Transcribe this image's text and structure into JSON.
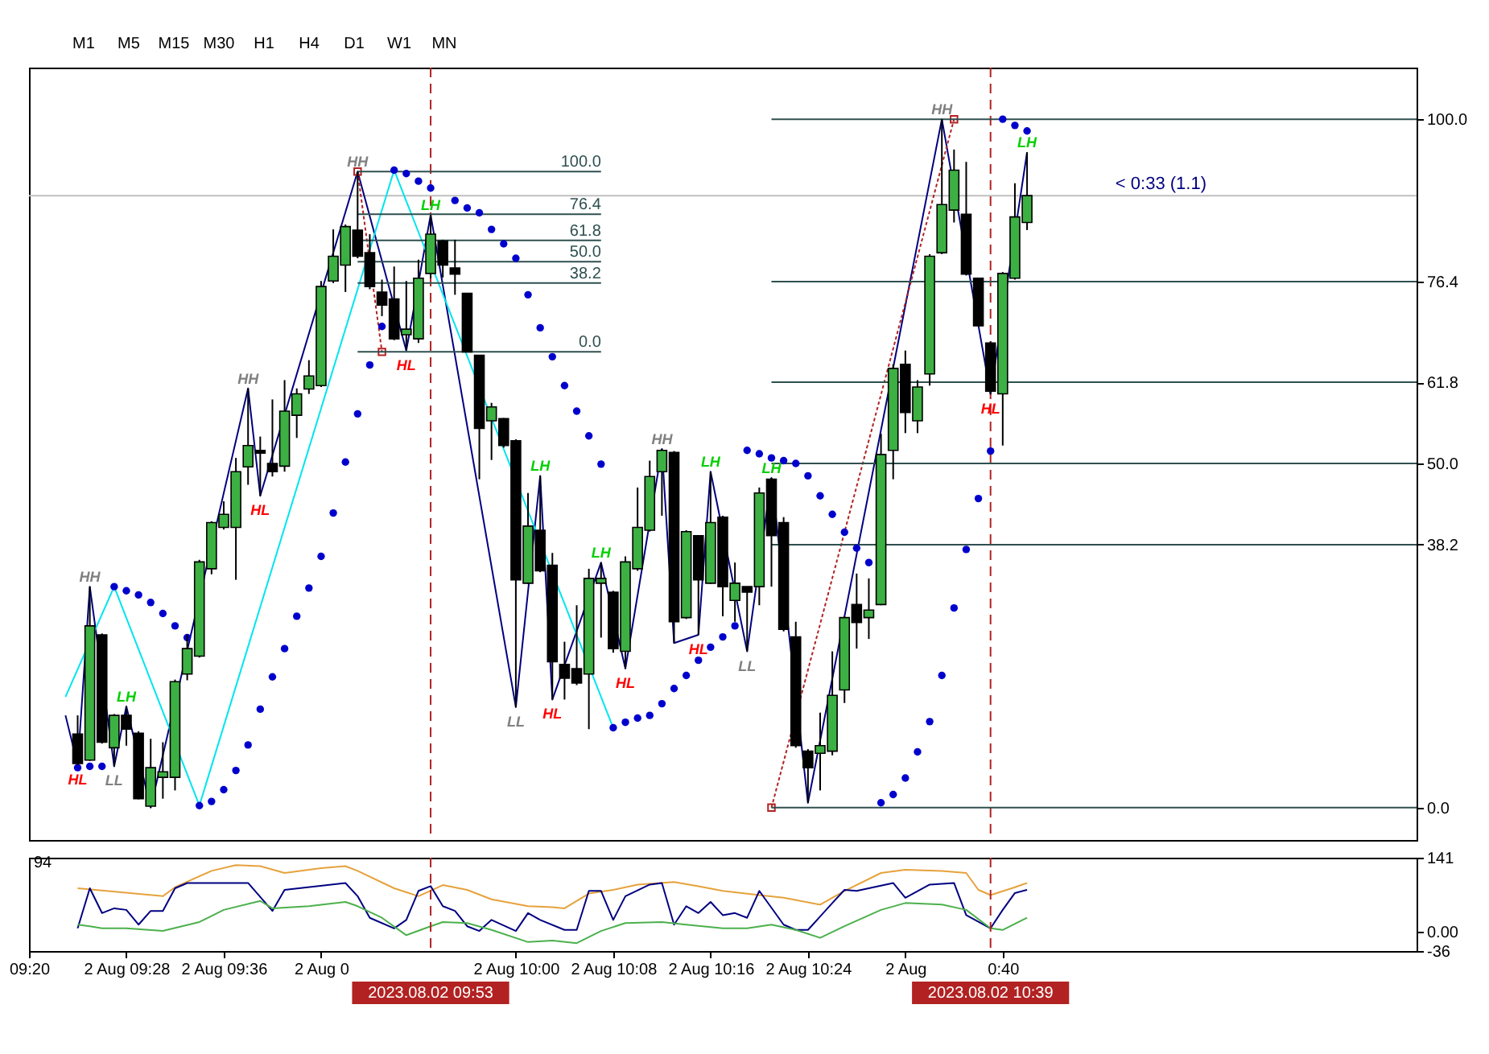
{
  "chart_data": [
    {
      "type": "candlestick",
      "tick_labels": "y",
      "xlim": [
        "2023-08-02T09:20",
        "2023-08-02T11:14"
      ],
      "ylim": [
        -4.7,
        107.5
      ],
      "yticks": [
        {
          "value": 0,
          "label": "0.0"
        },
        38.2,
        {
          "value": 50,
          "label": "50.0"
        },
        61.8,
        76.4,
        {
          "value": 100,
          "label": "100.0"
        }
      ],
      "x": [
        "2023-08-02T09:24",
        "2023-08-02T09:25",
        "2023-08-02T09:26",
        "2023-08-02T09:27",
        "2023-08-02T09:28",
        "2023-08-02T09:29",
        "2023-08-02T09:30",
        "2023-08-02T09:31",
        "2023-08-02T09:32",
        "2023-08-02T09:33",
        "2023-08-02T09:34",
        "2023-08-02T09:35",
        "2023-08-02T09:36",
        "2023-08-02T09:37",
        "2023-08-02T09:38",
        "2023-08-02T09:39",
        "2023-08-02T09:40",
        "2023-08-02T09:41",
        "2023-08-02T09:42",
        "2023-08-02T09:43",
        "2023-08-02T09:44",
        "2023-08-02T09:45",
        "2023-08-02T09:46",
        "2023-08-02T09:47",
        "2023-08-02T09:48",
        "2023-08-02T09:49",
        "2023-08-02T09:50",
        "2023-08-02T09:51",
        "2023-08-02T09:52",
        "2023-08-02T09:53",
        "2023-08-02T09:54",
        "2023-08-02T09:55",
        "2023-08-02T09:56",
        "2023-08-02T09:57",
        "2023-08-02T09:58",
        "2023-08-02T09:59",
        "2023-08-02T10:00",
        "2023-08-02T10:01",
        "2023-08-02T10:02",
        "2023-08-02T10:03",
        "2023-08-02T10:04",
        "2023-08-02T10:05",
        "2023-08-02T10:06",
        "2023-08-02T10:07",
        "2023-08-02T10:08",
        "2023-08-02T10:09",
        "2023-08-02T10:10",
        "2023-08-02T10:11",
        "2023-08-02T10:12",
        "2023-08-02T10:13",
        "2023-08-02T10:14",
        "2023-08-02T10:15",
        "2023-08-02T10:16",
        "2023-08-02T10:17",
        "2023-08-02T10:18",
        "2023-08-02T10:19",
        "2023-08-02T10:20",
        "2023-08-02T10:21",
        "2023-08-02T10:22",
        "2023-08-02T10:23",
        "2023-08-02T10:24",
        "2023-08-02T10:25",
        "2023-08-02T10:26",
        "2023-08-02T10:27",
        "2023-08-02T10:28",
        "2023-08-02T10:29",
        "2023-08-02T10:30",
        "2023-08-02T10:31",
        "2023-08-02T10:32",
        "2023-08-02T10:33",
        "2023-08-02T10:34",
        "2023-08-02T10:35",
        "2023-08-02T10:36",
        "2023-08-02T10:37",
        "2023-08-02T10:38",
        "2023-08-02T10:39",
        "2023-08-02T10:40",
        "2023-08-02T10:41",
        "2023-08-02T10:42"
      ],
      "ohlc": [
        [
          10.7,
          13.4,
          6.2,
          6.4
        ],
        [
          6.9,
          32.1,
          6.8,
          26.4
        ],
        [
          25.1,
          25.3,
          9.3,
          9.5
        ],
        [
          8.7,
          13.6,
          6.0,
          13.4
        ],
        [
          13.4,
          14.7,
          9.0,
          11.4
        ],
        [
          10.8,
          11.1,
          1.2,
          1.3
        ],
        [
          0.2,
          10.0,
          0.0,
          5.8
        ],
        [
          4.4,
          9.5,
          1.3,
          5.2
        ],
        [
          4.4,
          18.6,
          2.5,
          18.3
        ],
        [
          19.4,
          25.1,
          18.5,
          23.1
        ],
        [
          22.0,
          36.0,
          21.8,
          35.7
        ],
        [
          34.7,
          41.6,
          33.9,
          41.4
        ],
        [
          40.7,
          44.5,
          40.4,
          42.6
        ],
        [
          40.7,
          50.8,
          33.1,
          48.8
        ],
        [
          49.5,
          60.9,
          46.9,
          52.6
        ],
        [
          51.9,
          53.9,
          45.3,
          51.5
        ],
        [
          50.0,
          59.3,
          48.1,
          48.8
        ],
        [
          49.6,
          62.1,
          48.8,
          57.6
        ],
        [
          57.0,
          60.9,
          53.7,
          60.1
        ],
        [
          60.8,
          65.0,
          60.1,
          62.7
        ],
        [
          61.3,
          76.5,
          61.1,
          75.7
        ],
        [
          76.5,
          84.0,
          76.2,
          80.1
        ],
        [
          78.8,
          84.7,
          74.9,
          84.4
        ],
        [
          83.9,
          92.4,
          79.8,
          80.1
        ],
        [
          80.6,
          83.3,
          75.3,
          75.7
        ],
        [
          74.9,
          76.7,
          71.4,
          73.0
        ],
        [
          73.9,
          78.6,
          67.9,
          68.1
        ],
        [
          68.7,
          76.5,
          66.4,
          69.5
        ],
        [
          68.1,
          79.6,
          67.5,
          76.9
        ],
        [
          77.6,
          86.1,
          76.9,
          83.3
        ],
        [
          82.3,
          82.5,
          77.0,
          78.8
        ],
        [
          78.4,
          82.5,
          74.5,
          77.5
        ],
        [
          74.7,
          74.7,
          66.2,
          66.2
        ],
        [
          65.7,
          65.7,
          47.7,
          55.1
        ],
        [
          56.2,
          58.8,
          50.5,
          58.2
        ],
        [
          56.5,
          56.6,
          52.3,
          52.6
        ],
        [
          53.3,
          53.5,
          14.6,
          33.1
        ],
        [
          32.6,
          45.7,
          32.5,
          40.9
        ],
        [
          40.3,
          48.2,
          34.2,
          34.4
        ],
        [
          35.2,
          37.0,
          15.7,
          21.2
        ],
        [
          20.8,
          24.1,
          15.7,
          18.8
        ],
        [
          20.2,
          29.4,
          17.8,
          18.1
        ],
        [
          19.4,
          34.7,
          11.4,
          33.3
        ],
        [
          32.6,
          35.6,
          24.7,
          33.3
        ],
        [
          31.3,
          31.5,
          22.5,
          23.1
        ],
        [
          22.7,
          36.5,
          20.2,
          35.7
        ],
        [
          34.7,
          46.5,
          34.4,
          40.7
        ],
        [
          40.3,
          50.4,
          40.1,
          48.1
        ],
        [
          48.8,
          52.1,
          42.4,
          51.9
        ],
        [
          51.6,
          51.8,
          23.9,
          27.0
        ],
        [
          27.6,
          40.3,
          27.4,
          40.1
        ],
        [
          39.5,
          39.6,
          25.1,
          33.1
        ],
        [
          32.6,
          48.8,
          32.5,
          41.4
        ],
        [
          42.2,
          42.4,
          27.8,
          32.1
        ],
        [
          30.1,
          35.6,
          27.0,
          32.6
        ],
        [
          32.1,
          32.1,
          22.7,
          31.3
        ],
        [
          32.1,
          46.5,
          29.4,
          45.7
        ],
        [
          47.7,
          47.9,
          32.1,
          39.5
        ],
        [
          41.4,
          42.2,
          25.6,
          25.9
        ],
        [
          24.8,
          27.0,
          8.7,
          9.0
        ],
        [
          8.2,
          8.5,
          0.7,
          5.8
        ],
        [
          7.9,
          13.8,
          2.5,
          9.0
        ],
        [
          8.2,
          22.7,
          7.6,
          16.3
        ],
        [
          17.1,
          27.8,
          15.2,
          27.6
        ],
        [
          29.5,
          34.0,
          23.1,
          26.9
        ],
        [
          27.6,
          33.3,
          24.5,
          28.7
        ],
        [
          29.5,
          54.3,
          29.4,
          51.3
        ],
        [
          51.9,
          64.4,
          47.7,
          63.8
        ],
        [
          64.4,
          66.4,
          54.4,
          57.4
        ],
        [
          56.2,
          62.1,
          54.4,
          61.1
        ],
        [
          63.0,
          80.4,
          61.3,
          80.1
        ],
        [
          80.6,
          100.0,
          80.4,
          87.6
        ],
        [
          86.8,
          95.6,
          85.0,
          92.6
        ],
        [
          86.2,
          93.8,
          77.3,
          77.5
        ],
        [
          76.9,
          77.0,
          69.9,
          70.0
        ],
        [
          67.5,
          67.7,
          60.1,
          60.5
        ],
        [
          60.1,
          77.8,
          52.6,
          77.6
        ],
        [
          76.9,
          90.7,
          76.7,
          85.8
        ],
        [
          85.0,
          95.2,
          83.9,
          88.9
        ]
      ],
      "colors": [
        "#000000",
        "#3cb043",
        "#000000",
        "#3cb043",
        "#000000",
        "#000000",
        "#3cb043",
        "#3cb043",
        "#3cb043",
        "#3cb043",
        "#3cb043",
        "#3cb043",
        "#3cb043",
        "#3cb043",
        "#3cb043",
        "#000000",
        "#000000",
        "#3cb043",
        "#3cb043",
        "#3cb043",
        "#3cb043",
        "#3cb043",
        "#3cb043",
        "#000000",
        "#000000",
        "#000000",
        "#000000",
        "#3cb043",
        "#3cb043",
        "#3cb043",
        "#000000",
        "#000000",
        "#000000",
        "#000000",
        "#3cb043",
        "#000000",
        "#000000",
        "#3cb043",
        "#000000",
        "#000000",
        "#000000",
        "#000000",
        "#3cb043",
        "#3cb043",
        "#000000",
        "#3cb043",
        "#3cb043",
        "#3cb043",
        "#3cb043",
        "#000000",
        "#3cb043",
        "#000000",
        "#3cb043",
        "#000000",
        "#3cb043",
        "#000000",
        "#3cb043",
        "#000000",
        "#000000",
        "#000000",
        "#000000",
        "#3cb043",
        "#3cb043",
        "#3cb043",
        "#000000",
        "#3cb043",
        "#3cb043",
        "#3cb043",
        "#000000",
        "#3cb043",
        "#3cb043",
        "#3cb043",
        "#3cb043",
        "#000000",
        "#000000",
        "#000000",
        "#3cb043",
        "#3cb043",
        "#3cb043"
      ],
      "series": [
        {
          "type": "line",
          "color": "#000080",
          "x": [
            "2023-08-02T09:23",
            "2023-08-02T09:24",
            "2023-08-02T09:25",
            "2023-08-02T09:27",
            "2023-08-02T09:28",
            "2023-08-02T09:30",
            "2023-08-02T09:38",
            "2023-08-02T09:39",
            "2023-08-02T09:47",
            "2023-08-02T09:51",
            "2023-08-02T09:53",
            "2023-08-02T10:00",
            "2023-08-02T10:02",
            "2023-08-02T10:03",
            "2023-08-02T10:07",
            "2023-08-02T10:09",
            "2023-08-02T10:12",
            "2023-08-02T10:13",
            "2023-08-02T10:15",
            "2023-08-02T10:16",
            "2023-08-02T10:19",
            "2023-08-02T10:21",
            "2023-08-02T10:24",
            "2023-08-02T10:35",
            "2023-08-02T10:39",
            "2023-08-02T10:42"
          ],
          "values": [
            13.4,
            6.2,
            32.1,
            6.0,
            14.7,
            0.0,
            60.9,
            45.3,
            92.4,
            66.4,
            86.1,
            14.6,
            48.2,
            15.7,
            35.6,
            20.2,
            52.1,
            23.9,
            25.1,
            48.8,
            22.7,
            47.9,
            0.7,
            100.0,
            60.1,
            95.2
          ],
          "value_labels": [
            null,
            "HL",
            "HH",
            "LL",
            "LH",
            null,
            "HH",
            "HL",
            "HH",
            "HL",
            "LH",
            "LL",
            "LH",
            "HL",
            "LH",
            "HL",
            "HH",
            null,
            "HL",
            "LH",
            "LL",
            "LH",
            null,
            "HH",
            "HL",
            "LH"
          ],
          "colors": [
            "#000080",
            "#ff0000",
            "#808080",
            "#808080",
            "#00d000",
            "#000080",
            "#808080",
            "#ff0000",
            "#808080",
            "#ff0000",
            "#00d000",
            "#808080",
            "#00d000",
            "#ff0000",
            "#00d000",
            "#ff0000",
            "#808080",
            "#000080",
            "#ff0000",
            "#00d000",
            "#808080",
            "#00d000",
            "#000080",
            "#808080",
            "#ff0000",
            "#00d000"
          ]
        },
        {
          "type": "line",
          "color": "#00e5ee",
          "x": [
            "2023-08-02T09:23",
            "2023-08-02T09:27",
            "2023-08-02T09:34",
            "2023-08-02T09:50",
            "2023-08-02T10:08"
          ],
          "values": [
            16.1,
            32.1,
            0.3,
            92.6,
            11.6
          ]
        },
        {
          "type": "line",
          "color": "#b22222",
          "line_style": "dotted",
          "marker": "square",
          "x": [
            "2023-08-02T09:47",
            "2023-08-02T09:49"
          ],
          "values": [
            92.4,
            66.2
          ]
        },
        {
          "type": "line",
          "color": "#b22222",
          "line_style": "dotted",
          "marker": "square",
          "x": [
            "2023-08-02T10:21",
            "2023-08-02T10:36"
          ],
          "values": [
            0.0,
            100.0
          ]
        },
        {
          "type": "line",
          "name": "100.0",
          "color": "#2f4f4f",
          "x": [
            "2023-08-02T09:47",
            "2023-08-02T10:07"
          ],
          "values": [
            92.4,
            92.4
          ]
        },
        {
          "type": "line",
          "name": "76.4",
          "color": "#2f4f4f",
          "x": [
            "2023-08-02T09:47",
            "2023-08-02T10:07"
          ],
          "values": [
            86.2,
            86.2
          ]
        },
        {
          "type": "line",
          "name": "61.8",
          "color": "#2f4f4f",
          "x": [
            "2023-08-02T09:47",
            "2023-08-02T10:07"
          ],
          "values": [
            82.4,
            82.4
          ]
        },
        {
          "type": "line",
          "name": "50.0",
          "color": "#2f4f4f",
          "x": [
            "2023-08-02T09:47",
            "2023-08-02T10:07"
          ],
          "values": [
            79.3,
            79.3
          ]
        },
        {
          "type": "line",
          "name": "38.2",
          "color": "#2f4f4f",
          "x": [
            "2023-08-02T09:47",
            "2023-08-02T10:07"
          ],
          "values": [
            76.2,
            76.2
          ]
        },
        {
          "type": "line",
          "name": "0.0",
          "color": "#2f4f4f",
          "x": [
            "2023-08-02T09:47",
            "2023-08-02T10:07"
          ],
          "values": [
            66.2,
            66.2
          ]
        },
        {
          "type": "line",
          "color": "#2f4f4f",
          "x": [
            "2023-08-02T10:21",
            "2023-08-02T11:14"
          ],
          "values": [
            100.0,
            100.0
          ]
        },
        {
          "type": "line",
          "color": "#2f4f4f",
          "x": [
            "2023-08-02T10:21",
            "2023-08-02T11:14"
          ],
          "values": [
            76.4,
            76.4
          ]
        },
        {
          "type": "line",
          "color": "#2f4f4f",
          "x": [
            "2023-08-02T10:21",
            "2023-08-02T11:14"
          ],
          "values": [
            61.8,
            61.8
          ]
        },
        {
          "type": "line",
          "color": "#2f4f4f",
          "x": [
            "2023-08-02T10:21",
            "2023-08-02T11:14"
          ],
          "values": [
            50.0,
            50.0
          ]
        },
        {
          "type": "line",
          "color": "#2f4f4f",
          "x": [
            "2023-08-02T10:21",
            "2023-08-02T11:14"
          ],
          "values": [
            38.2,
            38.2
          ]
        },
        {
          "type": "line",
          "color": "#2f4f4f",
          "x": [
            "2023-08-02T10:21",
            "2023-08-02T11:14"
          ],
          "values": [
            0.0,
            0.0
          ]
        },
        {
          "type": "scatter",
          "color": "#0000cd",
          "marker": "circle",
          "x": [
            "2023-08-02T09:24",
            "2023-08-02T09:25",
            "2023-08-02T09:26",
            "2023-08-02T09:27",
            "2023-08-02T09:28",
            "2023-08-02T09:29",
            "2023-08-02T09:30",
            "2023-08-02T09:31",
            "2023-08-02T09:32",
            "2023-08-02T09:33",
            "2023-08-02T09:34",
            "2023-08-02T09:35",
            "2023-08-02T09:36",
            "2023-08-02T09:37",
            "2023-08-02T09:38",
            "2023-08-02T09:39",
            "2023-08-02T09:40",
            "2023-08-02T09:41",
            "2023-08-02T09:42",
            "2023-08-02T09:43",
            "2023-08-02T09:44",
            "2023-08-02T09:45",
            "2023-08-02T09:46",
            "2023-08-02T09:47",
            "2023-08-02T09:48",
            "2023-08-02T09:49",
            "2023-08-02T09:50",
            "2023-08-02T09:51",
            "2023-08-02T09:52",
            "2023-08-02T09:53",
            "2023-08-02T09:55",
            "2023-08-02T09:56",
            "2023-08-02T09:57",
            "2023-08-02T09:58",
            "2023-08-02T09:59",
            "2023-08-02T10:00",
            "2023-08-02T10:01",
            "2023-08-02T10:02",
            "2023-08-02T10:03",
            "2023-08-02T10:04",
            "2023-08-02T10:05",
            "2023-08-02T10:06",
            "2023-08-02T10:07",
            "2023-08-02T10:08",
            "2023-08-02T10:09",
            "2023-08-02T10:10",
            "2023-08-02T10:11",
            "2023-08-02T10:12",
            "2023-08-02T10:13",
            "2023-08-02T10:14",
            "2023-08-02T10:15",
            "2023-08-02T10:16",
            "2023-08-02T10:17",
            "2023-08-02T10:18",
            "2023-08-02T10:19",
            "2023-08-02T10:20",
            "2023-08-02T10:21",
            "2023-08-02T10:22",
            "2023-08-02T10:23",
            "2023-08-02T10:24",
            "2023-08-02T10:25",
            "2023-08-02T10:26",
            "2023-08-02T10:27",
            "2023-08-02T10:28",
            "2023-08-02T10:29",
            "2023-08-02T10:30",
            "2023-08-02T10:31",
            "2023-08-02T10:32",
            "2023-08-02T10:33",
            "2023-08-02T10:34",
            "2023-08-02T10:35",
            "2023-08-02T10:36",
            "2023-08-02T10:37",
            "2023-08-02T10:38",
            "2023-08-02T10:39",
            "2023-08-02T10:40",
            "2023-08-02T10:41",
            "2023-08-02T10:42"
          ],
          "values": [
            5.8,
            6.0,
            6.0,
            32.1,
            31.5,
            30.9,
            29.8,
            28.2,
            26.4,
            24.7,
            0.3,
            0.9,
            2.6,
            5.4,
            9.1,
            14.3,
            19.0,
            23.1,
            27.8,
            31.9,
            36.5,
            42.8,
            50.2,
            57.2,
            64.3,
            69.9,
            92.6,
            92.1,
            91.0,
            90.0,
            88.2,
            87.1,
            86.4,
            84.0,
            81.9,
            79.8,
            74.5,
            69.7,
            65.5,
            61.3,
            57.6,
            54.0,
            49.9,
            11.6,
            12.4,
            13.0,
            13.4,
            15.1,
            17.3,
            19.2,
            21.4,
            23.3,
            24.8,
            26.4,
            51.9,
            51.4,
            50.8,
            50.4,
            50.0,
            48.2,
            45.3,
            42.6,
            40.0,
            37.7,
            35.6,
            0.7,
            1.9,
            4.3,
            8.1,
            12.5,
            19.2,
            29.0,
            37.5,
            44.9,
            51.8,
            100.0,
            99.1,
            98.3
          ]
        }
      ],
      "ref_lines": [
        {
          "axis": "y",
          "value": 88.9,
          "color": "#c0c0c0"
        },
        {
          "axis": "x",
          "value": "2023-08-02T09:53",
          "color": "#b22222",
          "line_style": "dashed"
        },
        {
          "axis": "x",
          "value": "2023-08-02T10:39",
          "color": "#b22222",
          "line_style": "dashed"
        }
      ],
      "annotations": [
        "M1",
        "M5",
        "M15",
        "M30",
        "H1",
        "H4",
        "D1",
        "W1",
        "MN",
        {
          "text": "< 0:33 (1.1)",
          "x": "2023-08-02T10:53",
          "y": 88.9
        }
      ]
    },
    {
      "type": "line",
      "title": "94",
      "xlim": [
        "2023-08-02T09:20",
        "2023-08-02T11:14"
      ],
      "xticks": [
        {
          "value": "2023-08-02T09:20",
          "label": "09:20"
        },
        {
          "value": "2023-08-02T09:28",
          "label": "2 Aug 09:28"
        },
        {
          "value": "2023-08-02T09:36",
          "label": "2 Aug 09:36"
        },
        {
          "value": "2023-08-02T09:44",
          "label": "2 Aug 0"
        },
        {
          "value": "2023-08-02T10:00",
          "label": "2 Aug 10:00"
        },
        {
          "value": "2023-08-02T10:08",
          "label": "2 Aug 10:08"
        },
        {
          "value": "2023-08-02T10:16",
          "label": "2 Aug 10:16"
        },
        {
          "value": "2023-08-02T10:24",
          "label": "2 Aug 10:24"
        },
        {
          "value": "2023-08-02T10:32",
          "label": "2 Aug"
        },
        {
          "value": "2023-08-02T10:40",
          "label": "0:40"
        }
      ],
      "ylim": [
        -36,
        141
      ],
      "yticks": [
        141,
        {
          "value": 0,
          "label": "0.00"
        },
        -36
      ],
      "series": [
        {
          "color": "#e6a23c",
          "x": [
            "2023-08-02T09:24",
            "2023-08-02T09:31",
            "2023-08-02T09:32",
            "2023-08-02T09:35",
            "2023-08-02T09:37",
            "2023-08-02T09:39",
            "2023-08-02T09:41",
            "2023-08-02T09:44",
            "2023-08-02T09:46",
            "2023-08-02T09:47",
            "2023-08-02T09:50",
            "2023-08-02T09:52",
            "2023-08-02T09:54",
            "2023-08-02T09:56",
            "2023-08-02T09:58",
            "2023-08-02T10:01",
            "2023-08-02T10:03",
            "2023-08-02T10:04",
            "2023-08-02T10:06",
            "2023-08-02T10:08",
            "2023-08-02T10:10",
            "2023-08-02T10:13",
            "2023-08-02T10:15",
            "2023-08-02T10:17",
            "2023-08-02T10:20",
            "2023-08-02T10:22",
            "2023-08-02T10:25",
            "2023-08-02T10:27",
            "2023-08-02T10:30",
            "2023-08-02T10:32",
            "2023-08-02T10:35",
            "2023-08-02T10:37",
            "2023-08-02T10:38",
            "2023-08-02T10:39",
            "2023-08-02T10:41",
            "2023-08-02T10:42"
          ],
          "values": [
            83,
            68,
            85,
            116,
            127,
            125,
            112,
            121,
            125,
            116,
            83,
            68,
            89,
            80,
            62,
            49,
            47,
            45,
            73,
            80,
            90,
            95,
            87,
            78,
            70,
            65,
            52,
            78,
            112,
            118,
            116,
            112,
            80,
            70,
            85,
            93
          ]
        },
        {
          "color": "#000080",
          "x": [
            "2023-08-02T09:24",
            "2023-08-02T09:25",
            "2023-08-02T09:26",
            "2023-08-02T09:27",
            "2023-08-02T09:28",
            "2023-08-02T09:29",
            "2023-08-02T09:30",
            "2023-08-02T09:31",
            "2023-08-02T09:32",
            "2023-08-02T09:33",
            "2023-08-02T09:38",
            "2023-08-02T09:40",
            "2023-08-02T09:41",
            "2023-08-02T09:46",
            "2023-08-02T09:47",
            "2023-08-02T09:48",
            "2023-08-02T09:50",
            "2023-08-02T09:51",
            "2023-08-02T09:52",
            "2023-08-02T09:53",
            "2023-08-02T09:54",
            "2023-08-02T09:55",
            "2023-08-02T09:56",
            "2023-08-02T09:57",
            "2023-08-02T09:58",
            "2023-08-02T10:00",
            "2023-08-02T10:01",
            "2023-08-02T10:02",
            "2023-08-02T10:04",
            "2023-08-02T10:05",
            "2023-08-02T10:06",
            "2023-08-02T10:07",
            "2023-08-02T10:08",
            "2023-08-02T10:09",
            "2023-08-02T10:11",
            "2023-08-02T10:12",
            "2023-08-02T10:13",
            "2023-08-02T10:14",
            "2023-08-02T10:15",
            "2023-08-02T10:16",
            "2023-08-02T10:17",
            "2023-08-02T10:18",
            "2023-08-02T10:19",
            "2023-08-02T10:20",
            "2023-08-02T10:22",
            "2023-08-02T10:23",
            "2023-08-02T10:24",
            "2023-08-02T10:26",
            "2023-08-02T10:27",
            "2023-08-02T10:28",
            "2023-08-02T10:29",
            "2023-08-02T10:31",
            "2023-08-02T10:32",
            "2023-08-02T10:34",
            "2023-08-02T10:36",
            "2023-08-02T10:37",
            "2023-08-02T10:39",
            "2023-08-02T10:40",
            "2023-08-02T10:41",
            "2023-08-02T10:42"
          ],
          "values": [
            7,
            83,
            36,
            45,
            42,
            14,
            40,
            40,
            83,
            93,
            93,
            40,
            80,
            93,
            68,
            27,
            7,
            23,
            78,
            87,
            49,
            40,
            11,
            2,
            23,
            2,
            36,
            23,
            4,
            4,
            78,
            78,
            23,
            68,
            90,
            93,
            14,
            49,
            36,
            57,
            32,
            36,
            27,
            78,
            14,
            4,
            4,
            55,
            80,
            78,
            83,
            93,
            65,
            90,
            93,
            32,
            7,
            42,
            74,
            80
          ]
        },
        {
          "color": "#4cb04c",
          "x": [
            "2023-08-02T09:24",
            "2023-08-02T09:25",
            "2023-08-02T09:26",
            "2023-08-02T09:28",
            "2023-08-02T09:31",
            "2023-08-02T09:34",
            "2023-08-02T09:36",
            "2023-08-02T09:39",
            "2023-08-02T09:40",
            "2023-08-02T09:43",
            "2023-08-02T09:46",
            "2023-08-02T09:47",
            "2023-08-02T09:49",
            "2023-08-02T09:51",
            "2023-08-02T09:53",
            "2023-08-02T09:54",
            "2023-08-02T09:56",
            "2023-08-02T09:58",
            "2023-08-02T10:01",
            "2023-08-02T10:03",
            "2023-08-02T10:05",
            "2023-08-02T10:07",
            "2023-08-02T10:09",
            "2023-08-02T10:12",
            "2023-08-02T10:14",
            "2023-08-02T10:17",
            "2023-08-02T10:19",
            "2023-08-02T10:21",
            "2023-08-02T10:23",
            "2023-08-02T10:25",
            "2023-08-02T10:27",
            "2023-08-02T10:30",
            "2023-08-02T10:32",
            "2023-08-02T10:35",
            "2023-08-02T10:37",
            "2023-08-02T10:39",
            "2023-08-02T10:40",
            "2023-08-02T10:42"
          ],
          "values": [
            14,
            11,
            7,
            7,
            2,
            19,
            42,
            59,
            45,
            49,
            57,
            49,
            27,
            -6,
            11,
            19,
            17,
            4,
            -19,
            -16,
            -21,
            2,
            17,
            19,
            14,
            7,
            7,
            14,
            4,
            -11,
            11,
            42,
            55,
            52,
            42,
            7,
            4,
            27
          ]
        }
      ],
      "ref_lines": [
        {
          "axis": "x",
          "value": "2023-08-02T09:53",
          "label": "2023.08.02 09:53",
          "color": "#b22222",
          "line_style": "dashed"
        },
        {
          "axis": "x",
          "value": "2023-08-02T10:39",
          "label": "2023.08.02 10:39",
          "color": "#b22222",
          "line_style": "dashed"
        }
      ]
    }
  ]
}
